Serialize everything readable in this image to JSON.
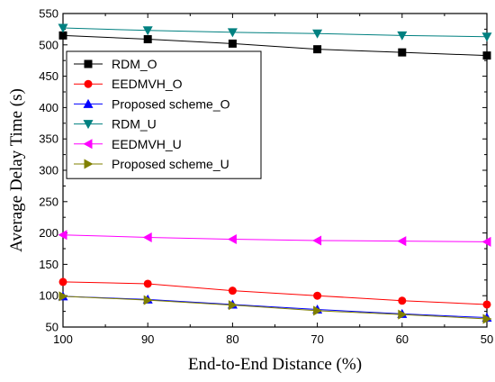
{
  "chart_data": {
    "type": "line",
    "title": "",
    "xlabel": "End-to-End Distance (%)",
    "ylabel": "Average Delay Time (s)",
    "x": [
      100,
      90,
      80,
      70,
      60,
      50
    ],
    "x_ticks": [
      100,
      90,
      80,
      70,
      60,
      50
    ],
    "xlim": [
      100,
      50
    ],
    "x_reversed": true,
    "ylim": [
      50,
      550
    ],
    "y_ticks": [
      50,
      100,
      150,
      200,
      250,
      300,
      350,
      400,
      450,
      500,
      550
    ],
    "grid": false,
    "legend_position": "top-left",
    "series": [
      {
        "name": "RDM_O",
        "values": [
          515,
          509,
          502,
          493,
          488,
          483
        ],
        "color": "#000000",
        "marker": "square"
      },
      {
        "name": "EEDMVH_O",
        "values": [
          122,
          119,
          108,
          100,
          92,
          86
        ],
        "color": "#ff0000",
        "marker": "circle"
      },
      {
        "name": "Proposed scheme_O",
        "values": [
          99,
          94,
          86,
          78,
          71,
          65
        ],
        "color": "#0000ff",
        "marker": "triangle-up"
      },
      {
        "name": "RDM_U",
        "values": [
          527,
          523,
          520,
          518,
          515,
          513
        ],
        "color": "#008080",
        "marker": "triangle-down"
      },
      {
        "name": "EEDMVH_U",
        "values": [
          197,
          193,
          190,
          188,
          187,
          186
        ],
        "color": "#ff00ff",
        "marker": "triangle-left"
      },
      {
        "name": "Proposed scheme_U",
        "values": [
          99,
          93,
          85,
          76,
          70,
          63
        ],
        "color": "#808000",
        "marker": "triangle-right"
      }
    ]
  }
}
